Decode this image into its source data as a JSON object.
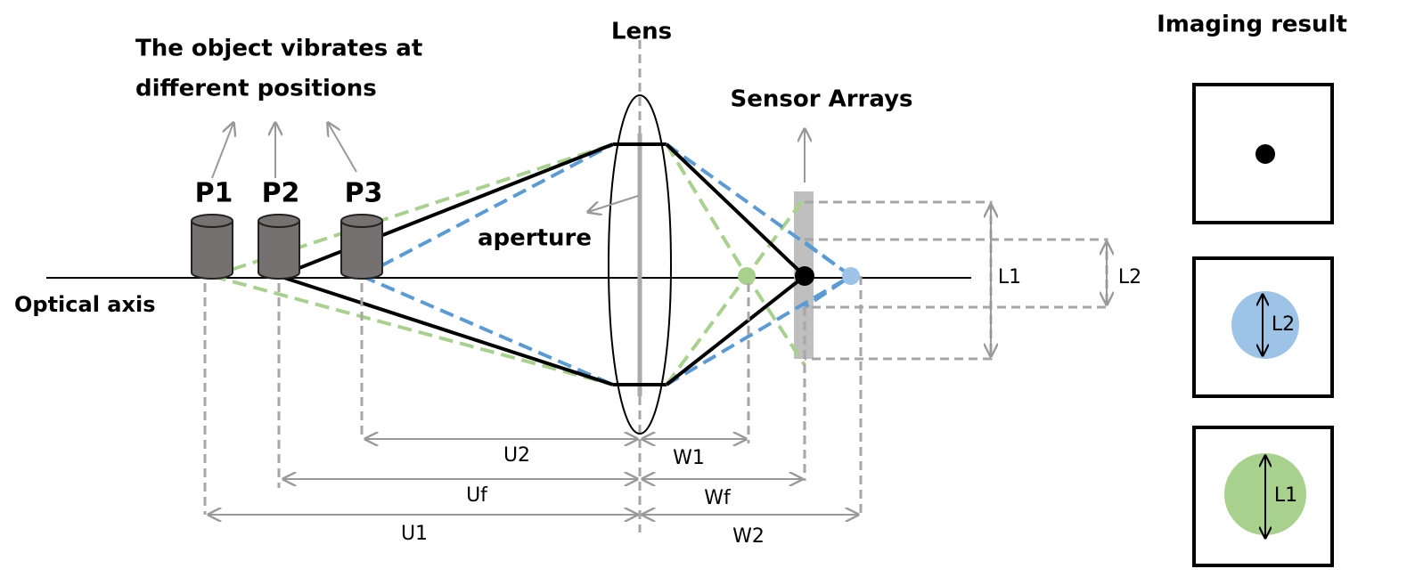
{
  "lens_label": "Lens",
  "object_caption": [
    "The object vibrates at",
    "different positions"
  ],
  "objects": [
    "P1",
    "P2",
    "P3"
  ],
  "aperture_label": "aperture",
  "optical_axis_label": "Optical axis",
  "sensor_label": "Sensor Arrays",
  "spot_size_labels": [
    "L1",
    "L2"
  ],
  "object_distances": [
    "U2",
    "Uf",
    "U1"
  ],
  "image_distances": [
    "W1",
    "Wf",
    "W2"
  ],
  "imaging_result": {
    "title": "Imaging result",
    "panel_labels": [
      "L2",
      "L1"
    ]
  }
}
